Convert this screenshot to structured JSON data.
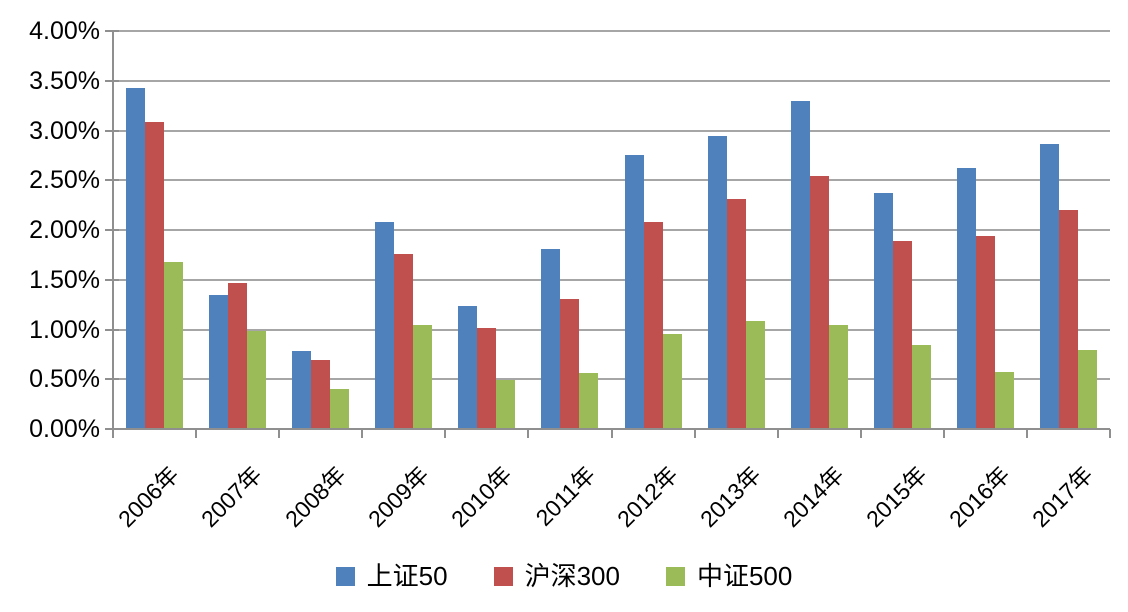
{
  "chart_data": {
    "type": "bar",
    "title": "",
    "xlabel": "",
    "ylabel": "",
    "categories": [
      "2006年",
      "2007年",
      "2008年",
      "2009年",
      "2010年",
      "2011年",
      "2012年",
      "2013年",
      "2014年",
      "2015年",
      "2016年",
      "2017年"
    ],
    "series": [
      {
        "name": "上证50",
        "color": "#4F81BD",
        "values": [
          3.43,
          1.35,
          0.78,
          2.08,
          1.24,
          1.81,
          2.75,
          2.94,
          3.3,
          2.37,
          2.62,
          2.86
        ]
      },
      {
        "name": "沪深300",
        "color": "#C0504D",
        "values": [
          3.09,
          1.47,
          0.69,
          1.76,
          1.02,
          1.31,
          2.08,
          2.31,
          2.54,
          1.89,
          1.94,
          2.2
        ]
      },
      {
        "name": "中证500",
        "color": "#9BBB59",
        "values": [
          1.68,
          0.98,
          0.4,
          1.05,
          0.49,
          0.56,
          0.95,
          1.09,
          1.05,
          0.84,
          0.57,
          0.79
        ]
      }
    ],
    "ylim": [
      0,
      4.0
    ],
    "ytick_step": 0.5,
    "ytick_labels": [
      "0.00%",
      "0.50%",
      "1.00%",
      "1.50%",
      "2.00%",
      "2.50%",
      "3.00%",
      "3.50%",
      "4.00%"
    ],
    "value_unit": "percent",
    "grid": true,
    "legend_position": "bottom"
  },
  "style_colors": {
    "gridline": "#A6A6A6",
    "axis": "#8F8F8F",
    "text": "#000000",
    "background": "#FFFFFF"
  }
}
